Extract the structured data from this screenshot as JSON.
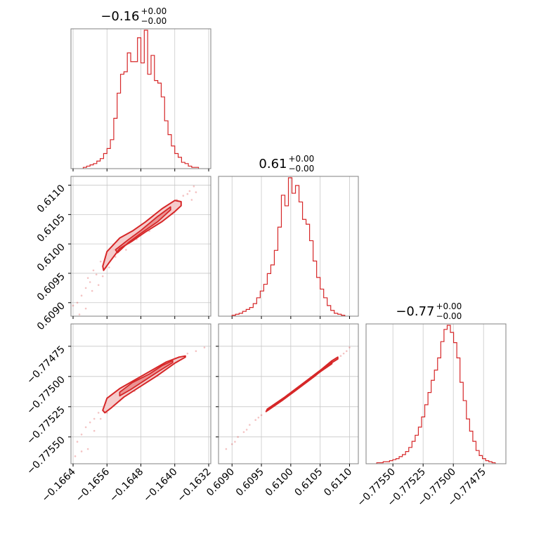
{
  "chart_data": {
    "type": "corner",
    "color": "#d62728",
    "fill_color": "#f4c7c7",
    "grid": true,
    "panels": [
      {
        "id": "hist-0",
        "type": "histogram",
        "title": {
          "main": "−0.16",
          "sup": "+0.00",
          "sub": "−0.00"
        },
        "xlim": [
          -0.16645,
          -0.16315
        ],
        "bin_width": 8e-05,
        "counts": [
          1,
          2,
          3,
          4,
          6,
          8,
          12,
          16,
          23,
          40,
          60,
          75,
          77,
          92,
          85,
          85,
          104,
          84,
          110,
          75,
          90,
          70,
          68,
          57,
          38,
          27,
          18,
          12,
          9,
          5,
          4,
          2,
          1,
          1
        ]
      },
      {
        "id": "hist-1",
        "type": "histogram",
        "title": {
          "main": "0.61",
          "sup": "+0.00",
          "sub": "−0.00"
        },
        "xlim": [
          0.60877,
          0.61115
        ],
        "bin_width": 6e-05,
        "counts": [
          1,
          2,
          3,
          5,
          7,
          9,
          13,
          19,
          26,
          33,
          44,
          53,
          68,
          92,
          125,
          114,
          143,
          127,
          135,
          118,
          100,
          95,
          78,
          57,
          40,
          28,
          19,
          11,
          6,
          3,
          2,
          1
        ]
      },
      {
        "id": "hist-2",
        "type": "histogram",
        "title": {
          "main": "−0.77",
          "sup": "+0.00",
          "sub": "−0.00"
        },
        "xlim": [
          -0.775722,
          -0.774565
        ],
        "bin_width": 2.65e-05,
        "counts": [
          1,
          1,
          2,
          2,
          3,
          4,
          5,
          7,
          9,
          12,
          16,
          22,
          28,
          36,
          46,
          58,
          70,
          82,
          92,
          104,
          120,
          132,
          136,
          129,
          119,
          104,
          80,
          62,
          44,
          32,
          22,
          13,
          8,
          5,
          3,
          2,
          1
        ]
      },
      {
        "id": "scatter-1-0",
        "type": "scatter-contour",
        "xlim": [
          -0.16645,
          -0.16315
        ],
        "ylim": [
          0.60877,
          0.61115
        ],
        "ridge_x": [
          -0.16567,
          -0.1653,
          -0.1648,
          -0.1643,
          -0.16395
        ],
        "ridge_y": [
          0.6096,
          0.61002,
          0.6103,
          0.61057,
          0.6107
        ],
        "contour_outer_upper": [
          [
            -0.1657,
            0.60962
          ],
          [
            -0.1656,
            0.60987
          ],
          [
            -0.1653,
            0.6101
          ],
          [
            -0.165,
            0.61022
          ],
          [
            -0.1647,
            0.61037
          ],
          [
            -0.1643,
            0.6106
          ],
          [
            -0.164,
            0.61074
          ],
          [
            -0.16385,
            0.61072
          ]
        ],
        "contour_outer_lower": [
          [
            -0.16385,
            0.61065
          ],
          [
            -0.164,
            0.61055
          ],
          [
            -0.1643,
            0.61038
          ],
          [
            -0.1647,
            0.6102
          ],
          [
            -0.165,
            0.61005
          ],
          [
            -0.1653,
            0.60992
          ],
          [
            -0.16555,
            0.60968
          ],
          [
            -0.16568,
            0.60955
          ]
        ],
        "contour_inner_upper": [
          [
            -0.1654,
            0.6099
          ],
          [
            -0.1651,
            0.61007
          ],
          [
            -0.1648,
            0.61023
          ],
          [
            -0.1644,
            0.61047
          ],
          [
            -0.1641,
            0.61063
          ]
        ],
        "contour_inner_lower": [
          [
            -0.1641,
            0.61058
          ],
          [
            -0.1644,
            0.61038
          ],
          [
            -0.1648,
            0.61018
          ],
          [
            -0.1651,
            0.61002
          ],
          [
            -0.16535,
            0.60985
          ]
        ],
        "points": [
          [
            -0.16585,
            0.60948
          ],
          [
            -0.166,
            0.60935
          ],
          [
            -0.1661,
            0.60925
          ],
          [
            -0.1662,
            0.60912
          ],
          [
            -0.1663,
            0.609
          ],
          [
            -0.16605,
            0.60942
          ],
          [
            -0.16592,
            0.60955
          ],
          [
            -0.16575,
            0.6097
          ],
          [
            -0.1656,
            0.60975
          ],
          [
            -0.16545,
            0.6099
          ],
          [
            -0.1652,
            0.61
          ],
          [
            -0.165,
            0.61015
          ],
          [
            -0.1647,
            0.6103
          ],
          [
            -0.16445,
            0.61045
          ],
          [
            -0.1642,
            0.6106
          ],
          [
            -0.16395,
            0.61075
          ],
          [
            -0.1638,
            0.61082
          ],
          [
            -0.16365,
            0.6109
          ],
          [
            -0.16355,
            0.61098
          ],
          [
            -0.1637,
            0.61085
          ],
          [
            -0.1661,
            0.6089
          ],
          [
            -0.16595,
            0.6092
          ],
          [
            -0.16555,
            0.6096
          ],
          [
            -0.1654,
            0.60978
          ],
          [
            -0.16515,
            0.6099
          ],
          [
            -0.1649,
            0.61008
          ],
          [
            -0.1646,
            0.61022
          ],
          [
            -0.1643,
            0.6104
          ],
          [
            -0.16405,
            0.61052
          ],
          [
            -0.1664,
            0.60895
          ],
          [
            -0.16625,
            0.6088
          ],
          [
            -0.1636,
            0.61075
          ],
          [
            -0.1635,
            0.61088
          ],
          [
            -0.1658,
            0.6093
          ],
          [
            -0.1657,
            0.60945
          ]
        ]
      },
      {
        "id": "scatter-2-0",
        "type": "scatter-contour",
        "xlim": [
          -0.16645,
          -0.16315
        ],
        "ylim": [
          -0.775722,
          -0.774565
        ],
        "contour_outer_upper": [
          [
            -0.1657,
            -0.77528
          ],
          [
            -0.1656,
            -0.77518
          ],
          [
            -0.1653,
            -0.7751
          ],
          [
            -0.1649,
            -0.77502
          ],
          [
            -0.1645,
            -0.77494
          ],
          [
            -0.1642,
            -0.77488
          ],
          [
            -0.1639,
            -0.77484
          ],
          [
            -0.16375,
            -0.77483
          ]
        ],
        "contour_outer_lower": [
          [
            -0.16375,
            -0.77484
          ],
          [
            -0.164,
            -0.77489
          ],
          [
            -0.1644,
            -0.77499
          ],
          [
            -0.1648,
            -0.77508
          ],
          [
            -0.1652,
            -0.77517
          ],
          [
            -0.1655,
            -0.77526
          ],
          [
            -0.16565,
            -0.7753
          ]
        ],
        "contour_inner_upper": [
          [
            -0.1653,
            -0.77513
          ],
          [
            -0.165,
            -0.77505
          ],
          [
            -0.1646,
            -0.77498
          ],
          [
            -0.1643,
            -0.77491
          ],
          [
            -0.16405,
            -0.77487
          ]
        ],
        "contour_inner_lower": [
          [
            -0.16405,
            -0.774885
          ],
          [
            -0.16435,
            -0.77495
          ],
          [
            -0.1647,
            -0.77503
          ],
          [
            -0.16505,
            -0.77511
          ],
          [
            -0.1653,
            -0.77516
          ]
        ],
        "points": [
          [
            -0.1659,
            -0.77535
          ],
          [
            -0.1661,
            -0.77542
          ],
          [
            -0.1662,
            -0.77548
          ],
          [
            -0.1663,
            -0.77554
          ],
          [
            -0.166,
            -0.77538
          ],
          [
            -0.1658,
            -0.7753
          ],
          [
            -0.1656,
            -0.77522
          ],
          [
            -0.1654,
            -0.77515
          ],
          [
            -0.1651,
            -0.77508
          ],
          [
            -0.1648,
            -0.77501
          ],
          [
            -0.1645,
            -0.77495
          ],
          [
            -0.1642,
            -0.77489
          ],
          [
            -0.1639,
            -0.77484
          ],
          [
            -0.1637,
            -0.77481
          ],
          [
            -0.1635,
            -0.77479
          ],
          [
            -0.1633,
            -0.77476
          ],
          [
            -0.16605,
            -0.7756
          ],
          [
            -0.1662,
            -0.77562
          ],
          [
            -0.1659,
            -0.77545
          ],
          [
            -0.16575,
            -0.77535
          ],
          [
            -0.1656,
            -0.7753
          ],
          [
            -0.1653,
            -0.7752
          ],
          [
            -0.16495,
            -0.77512
          ],
          [
            -0.16465,
            -0.77504
          ],
          [
            -0.16635,
            -0.77566
          ],
          [
            -0.1644,
            -0.77493
          ],
          [
            -0.164,
            -0.77486
          ]
        ]
      },
      {
        "id": "scatter-2-1",
        "type": "scatter-contour",
        "xlim": [
          0.60877,
          0.61115
        ],
        "ylim": [
          -0.775722,
          -0.774565
        ],
        "contour_outer_upper": [
          [
            0.6096,
            -0.77527
          ],
          [
            0.6099,
            -0.77517
          ],
          [
            0.6102,
            -0.77506
          ],
          [
            0.6105,
            -0.77495
          ],
          [
            0.6107,
            -0.77487
          ],
          [
            0.6108,
            -0.77484
          ]
        ],
        "contour_outer_lower": [
          [
            0.6108,
            -0.774855
          ],
          [
            0.61065,
            -0.7749
          ],
          [
            0.6104,
            -0.775
          ],
          [
            0.6101,
            -0.77511
          ],
          [
            0.60985,
            -0.7752
          ],
          [
            0.60958,
            -0.77529
          ]
        ],
        "contour_inner_upper": [
          [
            0.60985,
            -0.77519
          ],
          [
            0.61015,
            -0.77508
          ],
          [
            0.61045,
            -0.77497
          ],
          [
            0.6107,
            -0.77488
          ]
        ],
        "contour_inner_lower": [
          [
            0.6107,
            -0.774895
          ],
          [
            0.6104,
            -0.774995
          ],
          [
            0.6101,
            -0.7751
          ],
          [
            0.60982,
            -0.775205
          ]
        ],
        "points": [
          [
            0.609,
            -0.77556
          ],
          [
            0.6091,
            -0.7755
          ],
          [
            0.6092,
            -0.77546
          ],
          [
            0.6093,
            -0.7754
          ],
          [
            0.6094,
            -0.77536
          ],
          [
            0.6095,
            -0.77532
          ],
          [
            0.60965,
            -0.77526
          ],
          [
            0.6098,
            -0.77521
          ],
          [
            0.60995,
            -0.77515
          ],
          [
            0.6101,
            -0.7751
          ],
          [
            0.6103,
            -0.77503
          ],
          [
            0.6105,
            -0.77496
          ],
          [
            0.6107,
            -0.77488
          ],
          [
            0.61085,
            -0.77483
          ],
          [
            0.61095,
            -0.77479
          ],
          [
            0.611,
            -0.77476
          ],
          [
            0.6089,
            -0.7756
          ],
          [
            0.60905,
            -0.77554
          ],
          [
            0.60925,
            -0.77544
          ],
          [
            0.60945,
            -0.77534
          ],
          [
            0.6109,
            -0.77481
          ]
        ]
      }
    ],
    "ticks": {
      "x0": {
        "values": [
          -0.1664,
          -0.1656,
          -0.1648,
          -0.164,
          -0.1632
        ],
        "labels": [
          "−0.1664",
          "−0.1656",
          "−0.1648",
          "−0.1640",
          "−0.1632"
        ]
      },
      "x1": {
        "values": [
          0.609,
          0.6095,
          0.61,
          0.6105,
          0.611
        ],
        "labels": [
          "0.6090",
          "0.6095",
          "0.6100",
          "0.6105",
          "0.6110"
        ]
      },
      "x2": {
        "values": [
          -0.7755,
          -0.77525,
          -0.775,
          -0.77475
        ],
        "labels": [
          "−0.77550",
          "−0.77525",
          "−0.77500",
          "−0.77475"
        ]
      },
      "y1": {
        "values": [
          0.609,
          0.6095,
          0.61,
          0.6105,
          0.611
        ],
        "labels": [
          "0.6090",
          "0.6095",
          "0.6100",
          "0.6105",
          "0.6110"
        ]
      },
      "y2": {
        "values": [
          -0.7755,
          -0.77525,
          -0.775,
          -0.77475
        ],
        "labels": [
          "−0.77550",
          "−0.77525",
          "−0.77500",
          "−0.77475"
        ]
      }
    }
  }
}
